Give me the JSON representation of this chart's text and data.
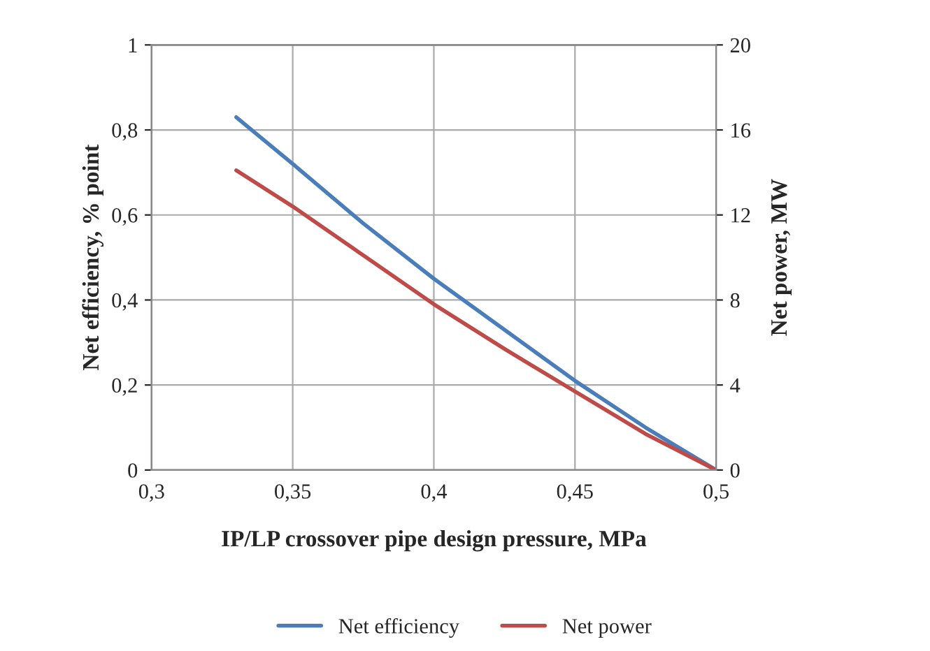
{
  "chart_data": {
    "type": "line",
    "xlabel": "IP/LP crossover pipe design pressure, MPa",
    "ylabel": "Net efficiency, % point",
    "y2label": "Net power, MW",
    "x": [
      0.33,
      0.35,
      0.375,
      0.4,
      0.425,
      0.45,
      0.475,
      0.5
    ],
    "series": [
      {
        "name": "Net efficiency",
        "color": "#4a7ebb",
        "values": [
          0.83,
          0.72,
          0.58,
          0.45,
          0.33,
          0.21,
          0.1,
          0
        ]
      },
      {
        "name": "Net power",
        "color": "#be4b48",
        "axis": "y2",
        "values": [
          14.1,
          12.4,
          10.1,
          7.8,
          5.7,
          3.7,
          1.7,
          0
        ]
      }
    ],
    "xlim": [
      0.3,
      0.5
    ],
    "xticks": [
      {
        "value": 0.3,
        "label": "0,3"
      },
      {
        "value": 0.35,
        "label": "0,35"
      },
      {
        "value": 0.4,
        "label": "0,4"
      },
      {
        "value": 0.45,
        "label": "0,45"
      },
      {
        "value": 0.5,
        "label": "0,5"
      }
    ],
    "ylim": [
      0,
      1
    ],
    "yticks": [
      0,
      {
        "value": 0.2,
        "label": "0,2"
      },
      {
        "value": 0.4,
        "label": "0,4"
      },
      {
        "value": 0.6,
        "label": "0,6"
      },
      {
        "value": 0.8,
        "label": "0,8"
      },
      1
    ],
    "y2lim": [
      0,
      20
    ],
    "y2ticks": [
      0,
      4,
      8,
      12,
      16,
      20
    ],
    "grid": true,
    "legend": "bottom",
    "marker": "none",
    "line_style": "solid"
  }
}
